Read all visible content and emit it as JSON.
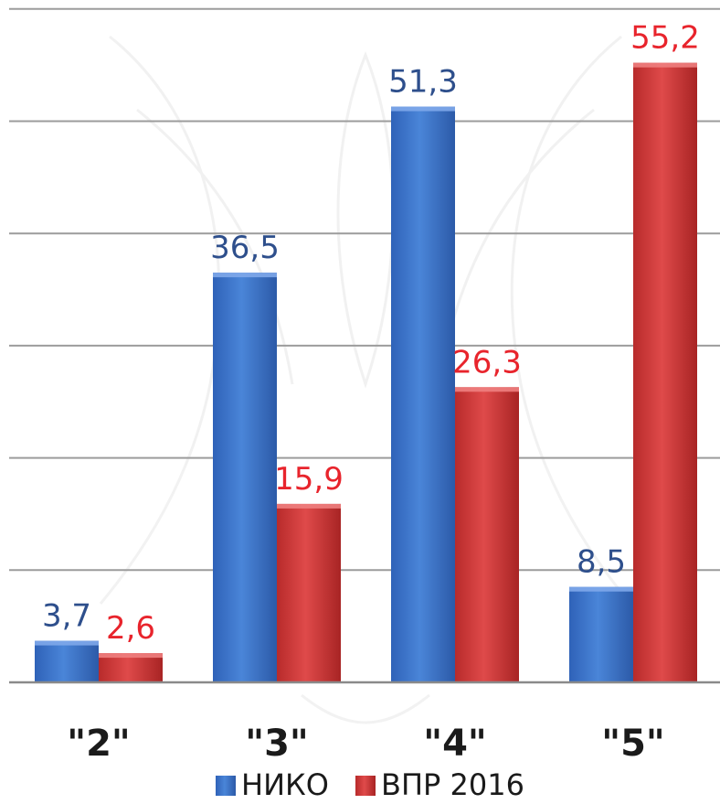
{
  "chart_data": {
    "type": "bar",
    "categories": [
      "\"2\"",
      "\"3\"",
      "\"4\"",
      "\"5\""
    ],
    "series": [
      {
        "name": "НИКО",
        "values": [
          3.7,
          36.5,
          51.3,
          8.5
        ],
        "labels": [
          "3,7",
          "36,5",
          "51,3",
          "8,5"
        ],
        "color": "#3d74c9",
        "label_color": "#2e4f8c"
      },
      {
        "name": "ВПР 2016",
        "values": [
          2.6,
          15.9,
          26.3,
          55.2
        ],
        "labels": [
          "2,6",
          "15,9",
          "26,3",
          "55,2"
        ],
        "color": "#cf3a3a",
        "label_color": "#e8242c"
      }
    ],
    "ylim": [
      0,
      60
    ],
    "grid": true,
    "legend_position": "bottom"
  }
}
